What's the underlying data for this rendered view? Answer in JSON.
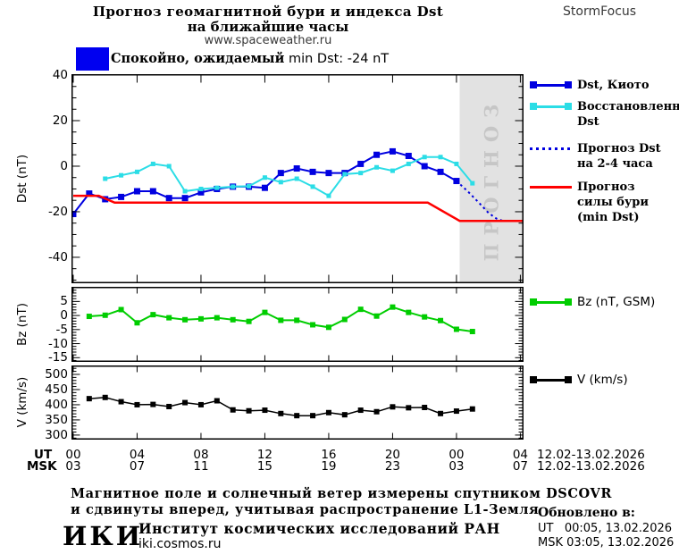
{
  "header": {
    "title_line1": "Прогноз геомагнитной бури и индекса Dst",
    "title_line2": "на ближайшие часы",
    "website": "www.spaceweather.ru",
    "brand": "StormFocus"
  },
  "status_banner": {
    "label_bold": "Спокойно, ожидаемый",
    "label_rest": "min Dst: -24 nT",
    "swatch_color": "#0000f0"
  },
  "forecast_watermark": "ПРОГНОЗ",
  "colors": {
    "dst_kyoto": "#0000e0",
    "dst_restored": "#2bdde6",
    "dst_forecast": "#0000e0",
    "storm_forecast": "#ff0000",
    "bz": "#00cd00",
    "v": "#000000",
    "forecast_region": "#e2e2e2",
    "watermark": "#c6c6c6"
  },
  "legend_main": [
    {
      "lines": [
        "Dst, Киото"
      ]
    },
    {
      "lines": [
        "Восстановленный",
        "Dst"
      ]
    },
    {
      "lines": [
        "Прогноз Dst",
        "на 2-4 часа"
      ]
    },
    {
      "lines": [
        "Прогноз",
        "силы бури",
        "(min Dst)"
      ]
    }
  ],
  "xaxis": {
    "ut_prefix": "UT",
    "msk_prefix": "MSK",
    "ut_labels": [
      "00",
      "04",
      "08",
      "12",
      "16",
      "20",
      "00",
      "04"
    ],
    "msk_labels": [
      "03",
      "07",
      "11",
      "15",
      "19",
      "23",
      "03",
      "07"
    ],
    "ut_date": "12.02-13.02.2026",
    "msk_date": "12.02-13.02.2026"
  },
  "footer": {
    "note_line1": "Магнитное поле и солнечный ветер измерены спутником DSCOVR",
    "note_line2": "и сдвинуты вперед, учитывая распространение L1-Земля",
    "logo_text": "ИКИ",
    "institute": "Институт космических исследований РАН",
    "website": "iki.cosmos.ru",
    "updated": {
      "label": "Обновлено в:",
      "ut": "UT   00:05, 13.02.2026",
      "msk": "MSK 03:05, 13.02.2026"
    }
  },
  "chart_data": {
    "type": "line",
    "x_unit": "hours UT, 12.02.2026 00:00 — 13.02.2026 04:00",
    "xlim": [
      -0.11,
      28.2
    ],
    "xticks": [
      0,
      4,
      8,
      12,
      16,
      20,
      24,
      28
    ],
    "panels": [
      {
        "id": "dst",
        "ylabel": "Dst (nT)",
        "ylim": [
          -51.4,
          40.4
        ],
        "yticks": [
          40,
          20,
          0,
          -20,
          -40
        ],
        "ytick_minor_step": 5,
        "forecast_region_x": [
          24.2,
          28.2
        ],
        "series": [
          {
            "name": "Dst, Киото",
            "color": "#0000e0",
            "width": 2,
            "marker": 7,
            "x": [
              0,
              1,
              2,
              3,
              4,
              5,
              6,
              7,
              8,
              9,
              10,
              11,
              12,
              13,
              14,
              15,
              16,
              17,
              18,
              19,
              20,
              21,
              22,
              23,
              24
            ],
            "y": [
              -21,
              -12,
              -14.5,
              -13.5,
              -11,
              -11,
              -14,
              -14,
              -11.5,
              -10,
              -9,
              -9,
              -9.5,
              -3,
              -1,
              -2.5,
              -3,
              -3,
              1,
              5,
              6.5,
              4.5,
              0,
              -2.5,
              -6.5
            ]
          },
          {
            "name": "Восстановленный Dst",
            "color": "#2bdde6",
            "width": 2,
            "marker": 5,
            "x": [
              2,
              3,
              4,
              5,
              6,
              7,
              8,
              9,
              10,
              11,
              12,
              13,
              14,
              15,
              16,
              17,
              18,
              19,
              20,
              21,
              22,
              23,
              24,
              25
            ],
            "y": [
              -5.5,
              -4,
              -2.5,
              1,
              0,
              -11,
              -10,
              -9.5,
              -9,
              -8.8,
              -5,
              -7,
              -5.5,
              -9,
              -13,
              -3.5,
              -3,
              -0.5,
              -2,
              1,
              4,
              4,
              1,
              -7.5
            ]
          },
          {
            "name": "Прогноз Dst на 2-4 часа",
            "color": "#0000e0",
            "width": 2,
            "dashed": true,
            "x": [
              24,
              24.7,
              25.4,
              26,
              26.5,
              26.9,
              27.5
            ],
            "y": [
              -6.5,
              -11,
              -16,
              -20.5,
              -23,
              -24,
              -24
            ]
          },
          {
            "name": "Прогноз силы бури (min Dst)",
            "color": "#ff0000",
            "width": 2.5,
            "x": [
              0,
              1.6,
              2.6,
              22.2,
              24.2,
              28.2
            ],
            "y": [
              -13,
              -13,
              -16,
              -16,
              -24,
              -24
            ]
          }
        ]
      },
      {
        "id": "bz",
        "ylabel": "Bz (nT)",
        "ylim": [
          -16.5,
          10.2
        ],
        "yticks": [
          5,
          0,
          -5,
          -10,
          -15
        ],
        "ytick_minor_step": 1,
        "series": [
          {
            "name": "Bz (nT, GSM)",
            "color": "#00cd00",
            "width": 2,
            "marker": 6,
            "x": [
              1,
              2,
              3,
              4,
              5,
              6,
              7,
              8,
              9,
              10,
              11,
              12,
              13,
              14,
              15,
              16,
              17,
              18,
              19,
              20,
              21,
              22,
              23,
              24,
              25
            ],
            "y": [
              -0.3,
              0.1,
              2.1,
              -2.6,
              0.3,
              -0.8,
              -1.5,
              -1.2,
              -0.8,
              -1.5,
              -2.1,
              1.1,
              -1.7,
              -1.7,
              -3.3,
              -4.2,
              -1.4,
              2.2,
              -0.2,
              3,
              1.1,
              -0.5,
              -1.8,
              -4.9,
              -5.7
            ]
          }
        ]
      },
      {
        "id": "v",
        "ylabel": "V (km/s)",
        "ylim": [
          285,
          529.4
        ],
        "yticks": [
          500,
          450,
          400,
          350,
          300
        ],
        "ytick_minor_step": 10,
        "series": [
          {
            "name": "V (km/s)",
            "color": "#000000",
            "width": 1.5,
            "marker": 6,
            "x": [
              1,
              2,
              3,
              4,
              5,
              6,
              7,
              8,
              9,
              10,
              11,
              12,
              13,
              14,
              15,
              16,
              17,
              18,
              19,
              20,
              21,
              22,
              23,
              24,
              25
            ],
            "y": [
              420,
              424,
              410,
              400,
              401,
              394,
              407,
              400,
              413,
              383,
              380,
              382,
              371,
              364,
              364,
              374,
              367,
              382,
              377,
              393,
              390,
              391,
              371,
              379,
              386
            ]
          }
        ]
      }
    ]
  }
}
